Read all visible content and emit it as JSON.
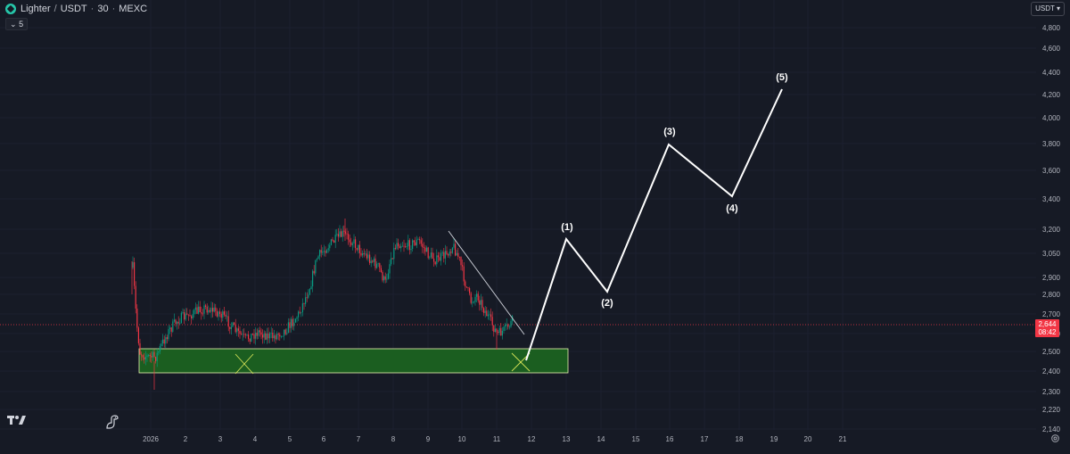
{
  "header": {
    "symbol": "Lighter",
    "quote": "USDT",
    "interval": "30",
    "exchange": "MEXC",
    "indicator_count": "5",
    "currency_button": "USDT"
  },
  "price_axis": {
    "ticks": [
      "4,800",
      "4,600",
      "4,400",
      "4,200",
      "4,000",
      "3,800",
      "3,600",
      "3,400",
      "3,200",
      "3,050",
      "2,900",
      "2,800",
      "2,700",
      "2,600",
      "2,500",
      "2,400",
      "2,300",
      "2,220",
      "2,140"
    ],
    "current_price": "2,644",
    "countdown": "08:42"
  },
  "time_axis": {
    "ticks": [
      "2026",
      "2",
      "3",
      "4",
      "5",
      "6",
      "7",
      "8",
      "9",
      "10",
      "11",
      "12",
      "13",
      "14",
      "15",
      "16",
      "17",
      "18",
      "19",
      "20",
      "21"
    ]
  },
  "wave_labels": [
    "(1)",
    "(2)",
    "(3)",
    "(4)",
    "(5)"
  ],
  "colors": {
    "background": "#161a25",
    "up": "#089981",
    "down": "#f23645",
    "zone_fill": "#1b5e20",
    "zone_border": "#e8f5b0",
    "wave": "#ffffff",
    "cross": "#d4e157"
  },
  "icons": [
    "tradingview-logo-icon",
    "dinosaur-icon",
    "settings-icon",
    "chevron-down-icon"
  ]
}
